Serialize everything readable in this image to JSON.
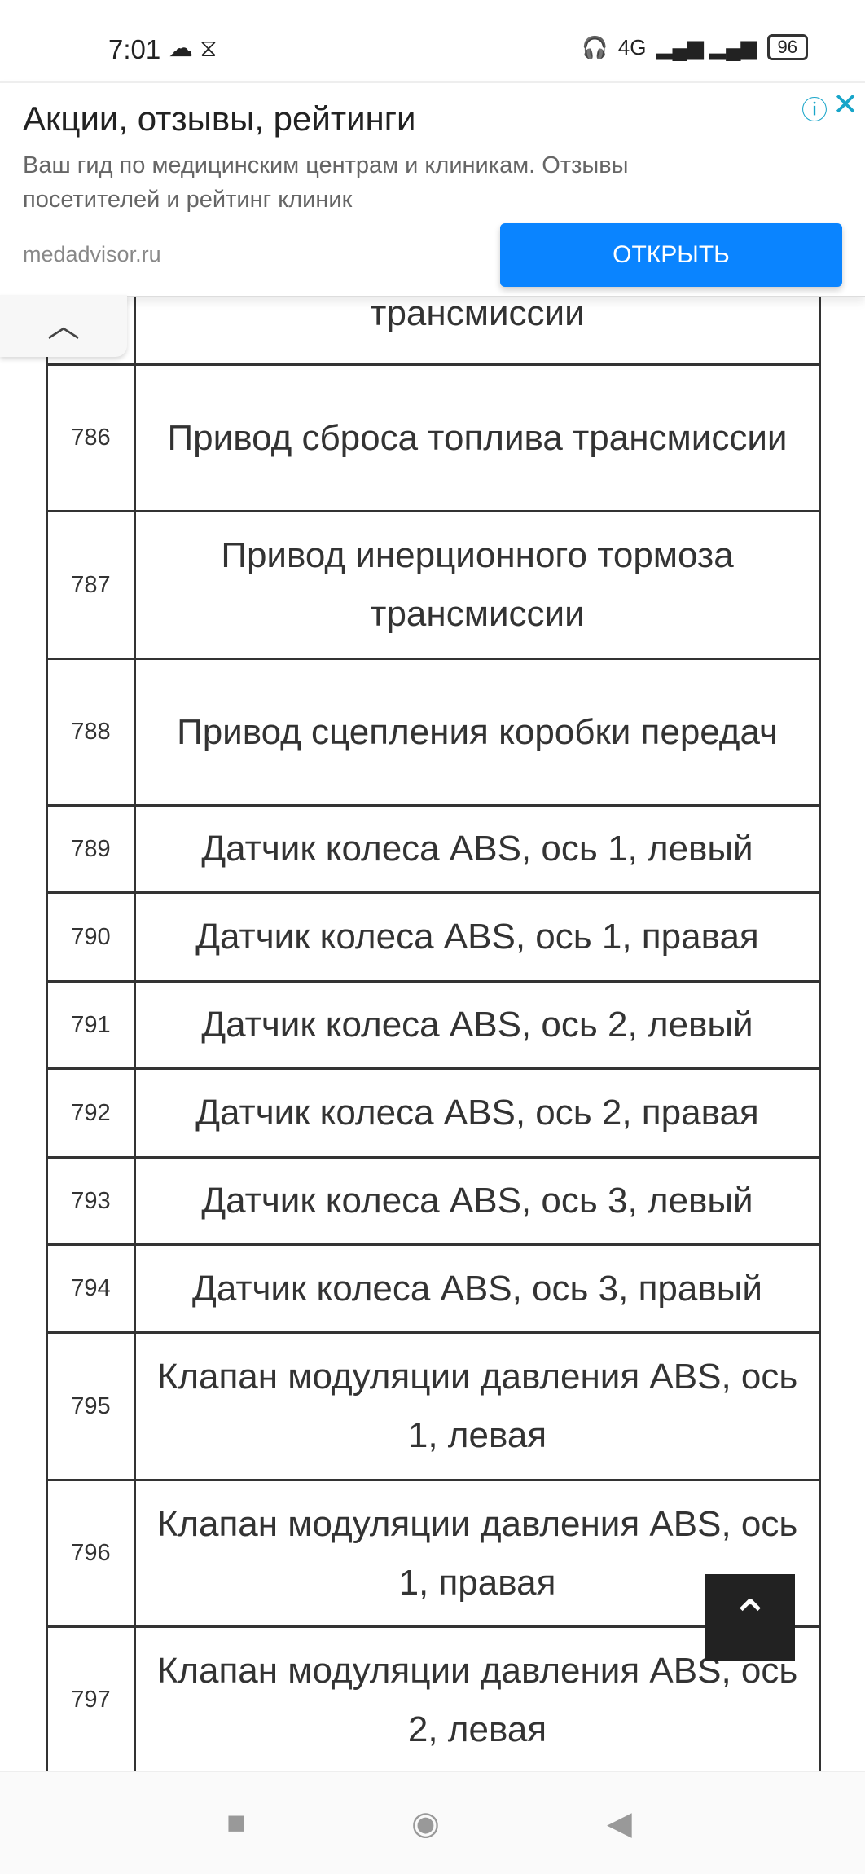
{
  "status_bar": {
    "time": "7:01",
    "battery": "96",
    "network": "4G"
  },
  "ad": {
    "title": "Акции, отзывы, рейтинги",
    "description": "Ваш гид по медицинским центрам и клиникам. Отзывы посетителей и рейтинг клиник",
    "site": "medadvisor.ru",
    "button": "ОТКРЫТЬ"
  },
  "table": {
    "partial_row": {
      "num": "",
      "desc": "трансмиссии"
    },
    "rows": [
      {
        "num": "786",
        "desc": "Привод сброса топлива трансмиссии",
        "h": 180
      },
      {
        "num": "787",
        "desc": "Привод инерционного тормоза трансмиссии",
        "h": 181
      },
      {
        "num": "788",
        "desc": "Привод сцепления коробки передач",
        "h": 180
      },
      {
        "num": "789",
        "desc": "Датчик колеса ABS, ось 1, левый",
        "h": 107
      },
      {
        "num": "790",
        "desc": "Датчик колеса ABS, ось 1, правая",
        "h": 109
      },
      {
        "num": "791",
        "desc": "Датчик колеса ABS, ось 2, левый",
        "h": 107
      },
      {
        "num": "792",
        "desc": "Датчик колеса ABS, ось 2, правая",
        "h": 109
      },
      {
        "num": "793",
        "desc": "Датчик колеса ABS, ось 3, левый",
        "h": 107
      },
      {
        "num": "794",
        "desc": "Датчик колеса ABS, ось 3, правый",
        "h": 108
      },
      {
        "num": "795",
        "desc": "Клапан модуляции давления ABS, ось 1, левая",
        "h": 181
      },
      {
        "num": "796",
        "desc": "Клапан модуляции давления ABS, ось 1, правая",
        "h": 180
      },
      {
        "num": "797",
        "desc": "Клапан модуляции давления ABS, ось 2, левая",
        "h": 180
      }
    ]
  }
}
